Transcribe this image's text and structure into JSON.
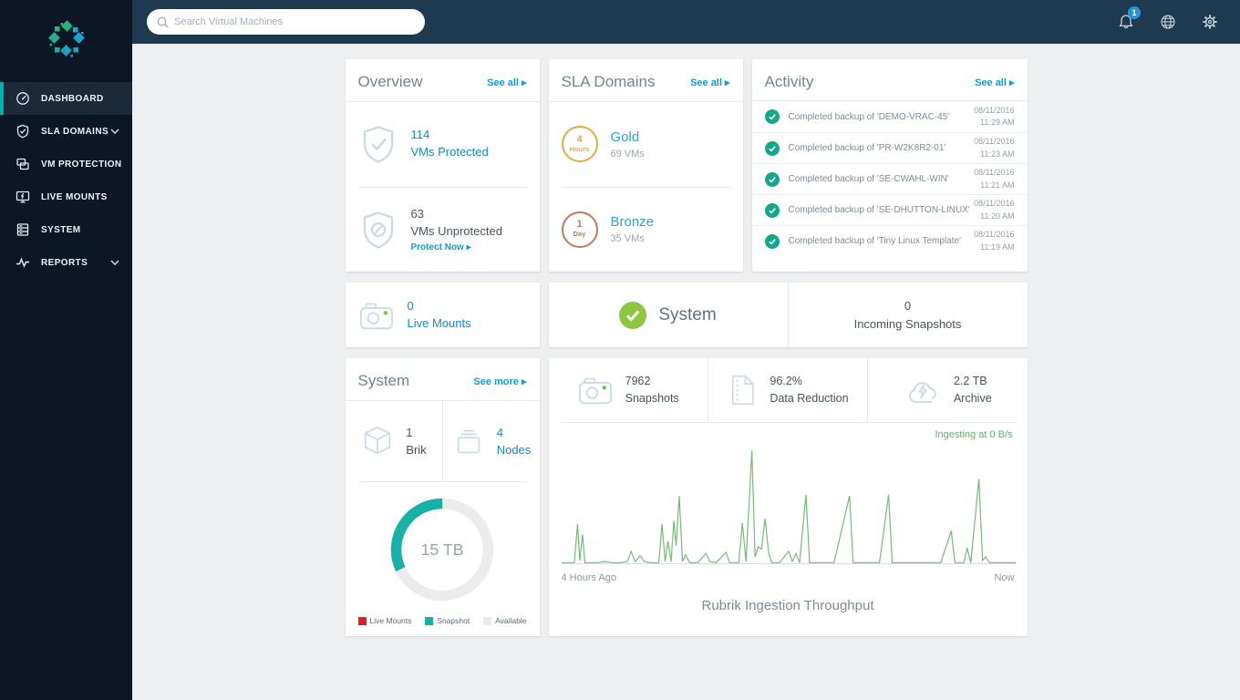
{
  "topbar": {
    "search_placeholder": "Search Virtual Machines",
    "notification_count": "1"
  },
  "sidebar": {
    "items": [
      {
        "label": "DASHBOARD",
        "icon": "gauge-icon",
        "active": true
      },
      {
        "label": "SLA DOMAINS",
        "icon": "shield-check-icon",
        "chevron": true
      },
      {
        "label": "VM PROTECTION",
        "icon": "vm-windows-icon"
      },
      {
        "label": "LIVE MOUNTS",
        "icon": "monitor-bolt-icon"
      },
      {
        "label": "SYSTEM",
        "icon": "server-icon"
      },
      {
        "label": "REPORTS",
        "icon": "pulse-icon",
        "chevron": true
      }
    ]
  },
  "overview": {
    "title": "Overview",
    "see_all": "See all ▸",
    "protected": {
      "value": "114",
      "label": "VMs Protected"
    },
    "unprotected": {
      "value": "63",
      "label": "VMs Unprotected",
      "action": "Protect Now ▸"
    }
  },
  "sla_domains": {
    "title": "SLA Domains",
    "see_all": "See all ▸",
    "items": [
      {
        "badge_top": "4",
        "badge_bottom": "Hours",
        "name": "Gold",
        "count": "69 VMs",
        "color": "#e5ab43"
      },
      {
        "badge_top": "1",
        "badge_bottom": "Day",
        "name": "Bronze",
        "count": "35 VMs",
        "color": "#bd7b61"
      }
    ]
  },
  "activity": {
    "title": "Activity",
    "see_all": "See all ▸",
    "items": [
      {
        "text": "Completed backup of 'DEMO-VRAC-45'",
        "date": "08/11/2016",
        "time": "11:29 AM"
      },
      {
        "text": "Completed backup of 'PR-W2K8R2-01'",
        "date": "08/11/2016",
        "time": "11:23 AM"
      },
      {
        "text": "Completed backup of 'SE-CWAHL-WIN'",
        "date": "08/11/2016",
        "time": "11:21 AM"
      },
      {
        "text": "Completed backup of 'SE-DHUTTON-LINUX'",
        "date": "08/11/2016",
        "time": "11:20 AM"
      },
      {
        "text": "Completed backup of 'Tiny Linux Template'",
        "date": "08/11/2016",
        "time": "11:19 AM"
      }
    ],
    "status_color": "#14a78c"
  },
  "live_mounts": {
    "value": "0",
    "label": "Live Mounts"
  },
  "system_status": {
    "label": "System",
    "status_color": "#8dc63f",
    "incoming_value": "0",
    "incoming_label": "Incoming Snapshots"
  },
  "system_card": {
    "title": "System",
    "see_more": "See more ▸",
    "brik": {
      "value": "1",
      "label": "Brik"
    },
    "nodes": {
      "value": "4",
      "label": "Nodes"
    },
    "capacity": {
      "total": "15 TB",
      "snapshot_pct": 32,
      "legend": [
        {
          "label": "Live Mounts",
          "color": "#e31b23"
        },
        {
          "label": "Snapshot",
          "color": "#17b1a5"
        },
        {
          "label": "Available",
          "color": "#e9e9e9"
        }
      ]
    }
  },
  "stats": [
    {
      "value": "7962",
      "label": "Snapshots",
      "icon": "camera-icon"
    },
    {
      "value": "96.2%",
      "label": "Data Reduction",
      "icon": "zip-file-icon"
    },
    {
      "value": "2.2 TB",
      "label": "Archive",
      "icon": "cloud-bolt-icon"
    }
  ],
  "chart_data": {
    "type": "line",
    "title": "Rubrik Ingestion Throughput",
    "status_label": "Ingesting at 0 B/s",
    "xlabel_left": "4 Hours Ago",
    "xlabel_right": "Now",
    "x_range": [
      "4 Hours Ago",
      "Now"
    ],
    "y_units": "relative throughput (B/s), 0-100 of peak",
    "line_color": "#76ba78",
    "grid": false,
    "points": [
      [
        0,
        1
      ],
      [
        1.5,
        1
      ],
      [
        2.8,
        1
      ],
      [
        3.5,
        35
      ],
      [
        4.0,
        3
      ],
      [
        4.6,
        26
      ],
      [
        5.1,
        1
      ],
      [
        6.5,
        1
      ],
      [
        8,
        1
      ],
      [
        9.5,
        2
      ],
      [
        11,
        1
      ],
      [
        13,
        1
      ],
      [
        14.5,
        2
      ],
      [
        15.3,
        11
      ],
      [
        16.2,
        2
      ],
      [
        17.3,
        7
      ],
      [
        18.2,
        2
      ],
      [
        19.5,
        1
      ],
      [
        21.4,
        1
      ],
      [
        22.1,
        35
      ],
      [
        22.8,
        2
      ],
      [
        23.4,
        20
      ],
      [
        24.1,
        2
      ],
      [
        24.7,
        38
      ],
      [
        25.2,
        16
      ],
      [
        25.9,
        60
      ],
      [
        26.6,
        2
      ],
      [
        27.3,
        8
      ],
      [
        28.2,
        1
      ],
      [
        30,
        1
      ],
      [
        31.8,
        9
      ],
      [
        32.6,
        2
      ],
      [
        34,
        1
      ],
      [
        36.2,
        10
      ],
      [
        37,
        1
      ],
      [
        39,
        1
      ],
      [
        39.8,
        36
      ],
      [
        40.6,
        2
      ],
      [
        41.9,
        100
      ],
      [
        42.6,
        6
      ],
      [
        43.3,
        15
      ],
      [
        44.0,
        13
      ],
      [
        44.8,
        40
      ],
      [
        45.6,
        9
      ],
      [
        46.3,
        1
      ],
      [
        48,
        1
      ],
      [
        50.0,
        11
      ],
      [
        50.8,
        2
      ],
      [
        51.6,
        9
      ],
      [
        52.4,
        1
      ],
      [
        53.8,
        61
      ],
      [
        54.6,
        1
      ],
      [
        57,
        1
      ],
      [
        60,
        1
      ],
      [
        63.4,
        60
      ],
      [
        64.2,
        1
      ],
      [
        67,
        1
      ],
      [
        70,
        1
      ],
      [
        72.0,
        61
      ],
      [
        72.8,
        1
      ],
      [
        76,
        1
      ],
      [
        80,
        1
      ],
      [
        83.5,
        1
      ],
      [
        85.8,
        29
      ],
      [
        86.6,
        1
      ],
      [
        88.6,
        1
      ],
      [
        89.3,
        14
      ],
      [
        90.1,
        1
      ],
      [
        91.9,
        75
      ],
      [
        92.7,
        3
      ],
      [
        93.4,
        6
      ],
      [
        94.2,
        1
      ],
      [
        96,
        1
      ],
      [
        98,
        1
      ],
      [
        100,
        1
      ]
    ]
  }
}
